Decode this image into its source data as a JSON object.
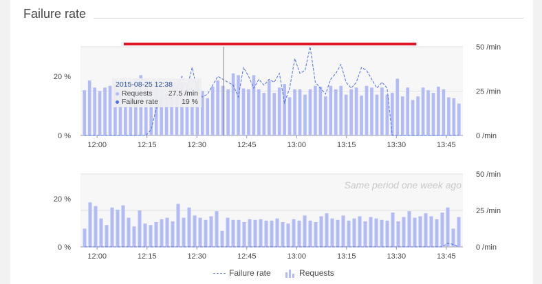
{
  "title": "Failure rate",
  "chart_data": [
    {
      "type": "bar+line",
      "panel": "current",
      "x_ticks": [
        "12:00",
        "12:15",
        "12:30",
        "12:45",
        "13:00",
        "13:15",
        "13:30",
        "13:45"
      ],
      "y_left_ticks": [
        "0 %",
        "20 %"
      ],
      "y_right_ticks": [
        "0 /min",
        "25 /min",
        "50 /min"
      ],
      "y_left_range": [
        0,
        30
      ],
      "y_right_range": [
        0,
        50
      ],
      "highlight_range": [
        "12:08",
        "13:36"
      ],
      "highlight_color": "#dc172a",
      "cursor_time": "12:38",
      "series": [
        {
          "name": "Requests",
          "unit": "/min",
          "axis": "right",
          "values": [
            25.5,
            31,
            27,
            25,
            27,
            28,
            29.5,
            26,
            26,
            24,
            32,
            34,
            32,
            26,
            31,
            26,
            23,
            28,
            28,
            30,
            26.5,
            27,
            31,
            25,
            21,
            27.5,
            31,
            28,
            26,
            35,
            34,
            26.5,
            26,
            34,
            26,
            24,
            31,
            24,
            27,
            29,
            21.5,
            26,
            26,
            23,
            26,
            28,
            27.5,
            22,
            28,
            26,
            28,
            23,
            26,
            27,
            22.5,
            28,
            27,
            23,
            27,
            23,
            24,
            32,
            22,
            27,
            20,
            22,
            27,
            25.5,
            24,
            27.5,
            26,
            21.5,
            21,
            18
          ]
        },
        {
          "name": "Failure rate",
          "unit": "%",
          "axis": "left",
          "values": [
            0,
            0,
            0,
            0,
            0,
            0,
            0,
            0,
            0,
            0,
            0,
            0,
            0,
            2,
            9,
            12,
            14,
            13,
            16,
            20,
            16,
            23,
            15,
            13,
            14,
            17,
            20,
            19,
            18,
            17,
            13,
            23,
            20,
            16,
            19,
            17,
            19,
            18,
            21,
            11,
            16,
            26,
            21,
            22,
            30,
            18,
            16,
            14,
            19,
            21,
            24,
            18,
            16,
            18,
            23,
            22,
            19,
            16,
            18,
            16,
            0,
            0,
            0,
            0,
            0,
            0,
            0,
            0,
            0,
            0,
            0,
            0,
            0,
            0
          ]
        }
      ],
      "tooltip": {
        "title": "2015-08-25 12:38",
        "requests_label": "Requests",
        "requests_value": "27.5 /min",
        "failure_label": "Failure rate",
        "failure_value": "19 %"
      }
    },
    {
      "type": "bar+line",
      "panel": "comparison",
      "caption": "Same period one week ago",
      "x_ticks": [
        "12:00",
        "12:15",
        "12:30",
        "12:45",
        "13:00",
        "13:15",
        "13:30",
        "13:45"
      ],
      "y_left_ticks": [
        "0 %",
        "20 %"
      ],
      "y_right_ticks": [
        "0 /min",
        "25 /min",
        "50 /min"
      ],
      "y_left_range": [
        0,
        30
      ],
      "y_right_range": [
        0,
        50
      ],
      "series": [
        {
          "name": "Requests",
          "unit": "/min",
          "axis": "right",
          "values": [
            12.5,
            30.5,
            28,
            19.5,
            15,
            27,
            25.5,
            28.5,
            20,
            14,
            25,
            16,
            15,
            17,
            19,
            20,
            17.5,
            29.5,
            20,
            27,
            21.5,
            20,
            18.5,
            21,
            24.5,
            11,
            20,
            18.5,
            18.5,
            17,
            19,
            18.5,
            19,
            18,
            18,
            19.5,
            17,
            16,
            19,
            18,
            21.5,
            18,
            17,
            21,
            23,
            19.5,
            18.5,
            21.5,
            18,
            19.5,
            21,
            17.5,
            20.5,
            19.5,
            18.5,
            18,
            23.5,
            17.5,
            20.5,
            24.5,
            20,
            21,
            23,
            21,
            19,
            23.5,
            27,
            12.5,
            20.5
          ]
        },
        {
          "name": "Failure rate",
          "unit": "%",
          "axis": "left",
          "values": [
            0,
            0,
            0,
            0,
            0,
            0,
            0,
            0,
            0,
            0,
            0,
            0,
            0,
            0,
            0,
            0,
            0,
            0,
            0,
            0,
            0,
            0,
            0,
            0,
            0,
            0,
            0,
            0,
            0,
            0,
            0,
            0,
            0,
            0,
            0,
            0,
            0,
            0,
            0,
            0,
            0,
            0,
            0,
            0,
            0,
            0,
            0,
            0,
            0,
            0,
            0,
            0,
            0,
            0,
            0,
            0,
            0,
            0,
            0,
            0,
            0,
            0,
            0,
            0,
            0,
            0,
            1.5,
            1,
            0
          ]
        }
      ]
    }
  ],
  "legend": {
    "failure_rate": "Failure rate",
    "requests": "Requests"
  },
  "colors": {
    "bars": "#b2bbf5",
    "line": "#4f6fe6",
    "panel_bg": "#f7f7f7",
    "grid": "#e2e2e2"
  }
}
